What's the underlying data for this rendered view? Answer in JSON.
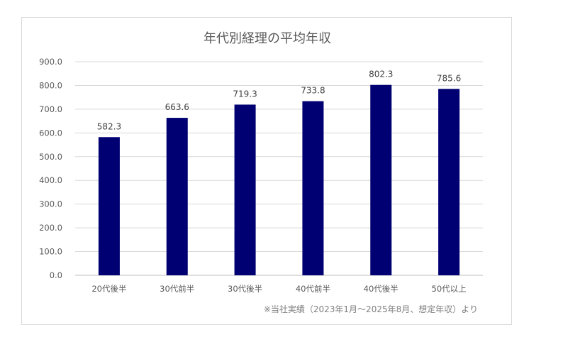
{
  "chart_data": {
    "type": "bar",
    "title": "年代別経理の平均年収",
    "categories": [
      "20代後半",
      "30代前半",
      "30代後半",
      "40代前半",
      "40代後半",
      "50代以上"
    ],
    "values": [
      582.3,
      663.6,
      719.3,
      733.8,
      802.3,
      785.6
    ],
    "value_labels": [
      "582.3",
      "663.6",
      "719.3",
      "733.8",
      "802.3",
      "785.6"
    ],
    "ylim": [
      0,
      900
    ],
    "yticks": [
      "0.0",
      "100.0",
      "200.0",
      "300.0",
      "400.0",
      "500.0",
      "600.0",
      "700.0",
      "800.0",
      "900.0"
    ],
    "xlabel": "",
    "ylabel": "",
    "grid": true,
    "legend": "none",
    "bar_color": "#000072",
    "note": "※当社実績（2023年1月〜2025年8月、想定年収）より"
  }
}
